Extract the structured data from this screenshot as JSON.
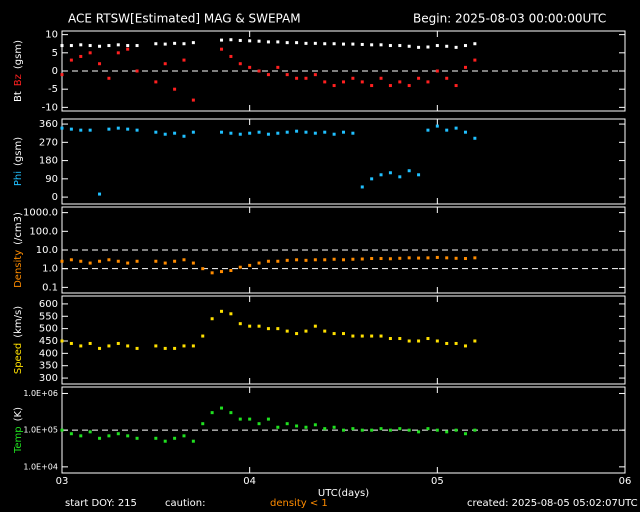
{
  "title": "ACE RTSW[Estimated] MAG & SWEPAM",
  "begin": "Begin: 2025-08-03 00:00:00UTC",
  "footer": {
    "start": "start DOY: 215",
    "caution": "caution:",
    "density_note": "density < 1",
    "created": "created: 2025-08-05 05:02:07UTC"
  },
  "chart_data": [
    {
      "type": "scatter",
      "ylabel": [
        {
          "text": "Bt",
          "color": "#ffffff"
        },
        {
          "text": "Bz",
          "color": "#ff2020"
        },
        {
          "text": "(gsm)",
          "color": "#ffffff"
        }
      ],
      "xlim": [
        3,
        6
      ],
      "ylim": [
        -11,
        11
      ],
      "yticks": [
        -10,
        -5,
        0,
        5,
        10
      ],
      "ref_lines": [
        0
      ],
      "x": [
        3.0,
        3.05,
        3.1,
        3.15,
        3.2,
        3.25,
        3.3,
        3.35,
        3.4,
        3.45,
        3.5,
        3.55,
        3.6,
        3.65,
        3.7,
        3.75,
        3.8,
        3.85,
        3.9,
        3.95,
        4.0,
        4.05,
        4.1,
        4.15,
        4.2,
        4.25,
        4.3,
        4.35,
        4.4,
        4.45,
        4.5,
        4.55,
        4.6,
        4.65,
        4.7,
        4.75,
        4.8,
        4.85,
        4.9,
        4.95,
        5.0,
        5.05,
        5.1,
        5.15,
        5.2
      ],
      "series": [
        {
          "name": "Bt",
          "color": "#ffffff",
          "values": [
            7,
            7,
            7.2,
            7,
            6.8,
            7,
            7.2,
            7,
            7,
            null,
            7.5,
            7.4,
            7.6,
            7.5,
            7.8,
            null,
            null,
            8.5,
            8.6,
            8.4,
            8.3,
            8.2,
            8,
            8,
            7.8,
            7.8,
            7.6,
            7.6,
            7.5,
            7.5,
            7.4,
            7.4,
            7.3,
            7.2,
            7.2,
            7,
            7,
            6.8,
            6.5,
            6.6,
            7,
            6.8,
            6.5,
            7,
            7.5
          ]
        },
        {
          "name": "Bz",
          "color": "#ff2020",
          "values": [
            -1,
            3,
            4,
            5,
            2,
            -2,
            5,
            6,
            0,
            null,
            -3,
            2,
            -5,
            3,
            -8,
            null,
            null,
            6,
            4,
            2,
            1,
            0,
            -1,
            1,
            -1,
            -2,
            -2,
            -1,
            -3,
            -4,
            -3,
            -2,
            -3,
            -4,
            -2,
            -4,
            -3,
            -4,
            -2,
            -3,
            0,
            -2,
            -4,
            1,
            3
          ]
        }
      ]
    },
    {
      "type": "scatter",
      "ylabel": [
        {
          "text": "Phi",
          "color": "#20c0ff"
        },
        {
          "text": "(gsm)",
          "color": "#ffffff"
        }
      ],
      "xlim": [
        3,
        6
      ],
      "ylim": [
        -34,
        385
      ],
      "yticks": [
        0,
        90,
        180,
        270,
        360
      ],
      "x": [
        3.0,
        3.05,
        3.1,
        3.15,
        3.2,
        3.25,
        3.3,
        3.35,
        3.4,
        3.45,
        3.5,
        3.55,
        3.6,
        3.65,
        3.7,
        3.75,
        3.8,
        3.85,
        3.9,
        3.95,
        4.0,
        4.05,
        4.1,
        4.15,
        4.2,
        4.25,
        4.3,
        4.35,
        4.4,
        4.45,
        4.5,
        4.55,
        4.6,
        4.65,
        4.7,
        4.75,
        4.8,
        4.85,
        4.9,
        4.95,
        5.0,
        5.05,
        5.1,
        5.15,
        5.2
      ],
      "series": [
        {
          "name": "Phi",
          "color": "#20c0ff",
          "values": [
            340,
            335,
            330,
            330,
            15,
            335,
            340,
            335,
            330,
            null,
            320,
            310,
            315,
            300,
            320,
            null,
            null,
            320,
            315,
            310,
            315,
            320,
            310,
            315,
            320,
            325,
            320,
            315,
            320,
            310,
            320,
            315,
            50,
            90,
            110,
            120,
            100,
            130,
            110,
            330,
            350,
            330,
            340,
            320,
            290
          ]
        }
      ]
    },
    {
      "type": "scatter",
      "log_scale": true,
      "ylabel": [
        {
          "text": "Density",
          "color": "#ff8c00"
        },
        {
          "text": "(/cm3)",
          "color": "#ffffff"
        }
      ],
      "xlim": [
        3,
        6
      ],
      "ylim": [
        0.05,
        2000
      ],
      "yticks": [
        0.1,
        {
          "value": 1,
          "label": "1.0"
        },
        {
          "value": 10,
          "label": "10.0"
        },
        {
          "value": 100,
          "label": "100.0"
        },
        {
          "value": 1000,
          "label": "1000.0"
        }
      ],
      "ref_lines": [
        1,
        10
      ],
      "x": [
        3.0,
        3.05,
        3.1,
        3.15,
        3.2,
        3.25,
        3.3,
        3.35,
        3.4,
        3.45,
        3.5,
        3.55,
        3.6,
        3.65,
        3.7,
        3.75,
        3.8,
        3.85,
        3.9,
        3.95,
        4.0,
        4.05,
        4.1,
        4.15,
        4.2,
        4.25,
        4.3,
        4.35,
        4.4,
        4.45,
        4.5,
        4.55,
        4.6,
        4.65,
        4.7,
        4.75,
        4.8,
        4.85,
        4.9,
        4.95,
        5.0,
        5.05,
        5.1,
        5.15,
        5.2
      ],
      "series": [
        {
          "name": "Density",
          "color": "#ff8c00",
          "values": [
            2.5,
            3,
            2.5,
            2,
            2.5,
            3,
            2.5,
            2,
            2.5,
            null,
            2.5,
            2,
            2.5,
            3,
            2,
            1.0,
            0.6,
            0.7,
            0.8,
            1.2,
            1.5,
            2,
            2.5,
            2.5,
            2.8,
            3,
            2.8,
            3,
            3,
            3.2,
            3,
            3.2,
            3.3,
            3.5,
            3.5,
            3.4,
            3.6,
            3.8,
            3.7,
            3.8,
            4,
            3.8,
            3.6,
            3.5,
            3.8
          ]
        }
      ]
    },
    {
      "type": "scatter",
      "ylabel": [
        {
          "text": "Speed",
          "color": "#ffe000"
        },
        {
          "text": "(km/s)",
          "color": "#ffffff"
        }
      ],
      "xlim": [
        3,
        6
      ],
      "ylim": [
        276,
        632
      ],
      "yticks": [
        300,
        350,
        400,
        450,
        500,
        550,
        600
      ],
      "x": [
        3.0,
        3.05,
        3.1,
        3.15,
        3.2,
        3.25,
        3.3,
        3.35,
        3.4,
        3.45,
        3.5,
        3.55,
        3.6,
        3.65,
        3.7,
        3.75,
        3.8,
        3.85,
        3.9,
        3.95,
        4.0,
        4.05,
        4.1,
        4.15,
        4.2,
        4.25,
        4.3,
        4.35,
        4.4,
        4.45,
        4.5,
        4.55,
        4.6,
        4.65,
        4.7,
        4.75,
        4.8,
        4.85,
        4.9,
        4.95,
        5.0,
        5.05,
        5.1,
        5.15,
        5.2
      ],
      "series": [
        {
          "name": "Speed",
          "color": "#ffe000",
          "values": [
            450,
            440,
            430,
            440,
            420,
            430,
            440,
            430,
            420,
            null,
            430,
            420,
            420,
            430,
            430,
            470,
            540,
            570,
            560,
            520,
            510,
            510,
            500,
            500,
            490,
            480,
            490,
            510,
            490,
            480,
            480,
            470,
            470,
            470,
            470,
            460,
            460,
            450,
            450,
            460,
            450,
            440,
            440,
            430,
            450
          ]
        }
      ]
    },
    {
      "type": "scatter",
      "log_scale": true,
      "ylabel": [
        {
          "text": "Temp",
          "color": "#20e020"
        },
        {
          "text": "(K)",
          "color": "#ffffff"
        }
      ],
      "xlim": [
        3,
        6
      ],
      "ylim": [
        6800,
        1500000
      ],
      "yticks": [
        {
          "value": 10000,
          "label": "1.0E+04"
        },
        {
          "value": 100000,
          "label": "1.0E+05"
        },
        {
          "value": 1000000,
          "label": "1.0E+06"
        }
      ],
      "ref_lines": [
        100000
      ],
      "xlabel": "UTC(days)",
      "xticks": [
        {
          "value": 3,
          "label": "03"
        },
        {
          "value": 4,
          "label": "04"
        },
        {
          "value": 5,
          "label": "05"
        },
        {
          "value": 6,
          "label": "06"
        }
      ],
      "x": [
        3.0,
        3.05,
        3.1,
        3.15,
        3.2,
        3.25,
        3.3,
        3.35,
        3.4,
        3.45,
        3.5,
        3.55,
        3.6,
        3.65,
        3.7,
        3.75,
        3.8,
        3.85,
        3.9,
        3.95,
        4.0,
        4.05,
        4.1,
        4.15,
        4.2,
        4.25,
        4.3,
        4.35,
        4.4,
        4.45,
        4.5,
        4.55,
        4.6,
        4.65,
        4.7,
        4.75,
        4.8,
        4.85,
        4.9,
        4.95,
        5.0,
        5.05,
        5.1,
        5.15,
        5.2
      ],
      "series": [
        {
          "name": "Temp",
          "color": "#20e020",
          "values": [
            100000,
            80000,
            70000,
            90000,
            60000,
            70000,
            80000,
            70000,
            60000,
            null,
            60000,
            50000,
            60000,
            70000,
            50000,
            150000,
            300000,
            400000,
            300000,
            200000,
            200000,
            150000,
            200000,
            120000,
            150000,
            130000,
            120000,
            140000,
            110000,
            120000,
            100000,
            110000,
            100000,
            100000,
            110000,
            100000,
            110000,
            100000,
            90000,
            110000,
            100000,
            90000,
            100000,
            80000,
            100000
          ]
        }
      ]
    }
  ]
}
